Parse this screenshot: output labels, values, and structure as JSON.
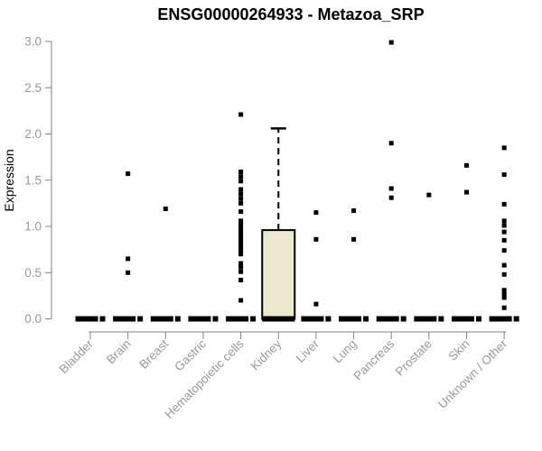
{
  "chart_data": {
    "type": "boxplot",
    "title": "ENSG00000264933 - Metazoa_SRP",
    "ylabel": "Expression",
    "xlabel": "",
    "ylim": [
      0.0,
      3.0
    ],
    "ytick_labels": [
      "0.0",
      "0.5",
      "1.0",
      "1.5",
      "2.0",
      "2.5",
      "3.0"
    ],
    "grid": false,
    "legend": "none",
    "categories": [
      "Bladder",
      "Brain",
      "Breast",
      "Gastric",
      "Hematopoietic cells",
      "Kidney",
      "Liver",
      "Lung",
      "Pancreas",
      "Prostate",
      "Skin",
      "Unknown / Other"
    ],
    "series": [
      {
        "category": "Bladder",
        "q1": 0,
        "median": 0,
        "q3": 0,
        "whisker_low": 0,
        "whisker_high": 0,
        "outliers": []
      },
      {
        "category": "Brain",
        "q1": 0,
        "median": 0,
        "q3": 0,
        "whisker_low": 0,
        "whisker_high": 0,
        "outliers": [
          1.57,
          0.65,
          0.5
        ]
      },
      {
        "category": "Breast",
        "q1": 0,
        "median": 0,
        "q3": 0,
        "whisker_low": 0,
        "whisker_high": 0,
        "outliers": [
          1.19
        ]
      },
      {
        "category": "Gastric",
        "q1": 0,
        "median": 0,
        "q3": 0,
        "whisker_low": 0,
        "whisker_high": 0,
        "outliers": []
      },
      {
        "category": "Hematopoietic cells",
        "q1": 0,
        "median": 0,
        "q3": 0,
        "whisker_low": 0,
        "whisker_high": 0,
        "outliers": [
          2.21,
          1.59,
          1.54,
          1.49,
          1.4,
          1.35,
          1.3,
          1.25,
          1.16,
          1.06,
          1.02,
          0.98,
          0.94,
          0.9,
          0.86,
          0.82,
          0.78,
          0.74,
          0.7,
          0.6,
          0.56,
          0.51,
          0.42,
          0.2
        ]
      },
      {
        "category": "Kidney",
        "q1": 0,
        "median": 0,
        "q3": 0.96,
        "whisker_low": 0,
        "whisker_high": 2.06,
        "outliers": []
      },
      {
        "category": "Liver",
        "q1": 0,
        "median": 0,
        "q3": 0,
        "whisker_low": 0,
        "whisker_high": 0,
        "outliers": [
          1.15,
          0.86,
          0.16
        ]
      },
      {
        "category": "Lung",
        "q1": 0,
        "median": 0,
        "q3": 0,
        "whisker_low": 0,
        "whisker_high": 0,
        "outliers": [
          1.17,
          0.86
        ]
      },
      {
        "category": "Pancreas",
        "q1": 0,
        "median": 0,
        "q3": 0,
        "whisker_low": 0,
        "whisker_high": 0,
        "outliers": [
          2.99,
          1.9,
          1.41,
          1.31
        ]
      },
      {
        "category": "Prostate",
        "q1": 0,
        "median": 0,
        "q3": 0,
        "whisker_low": 0,
        "whisker_high": 0,
        "outliers": [
          1.34
        ]
      },
      {
        "category": "Skin",
        "q1": 0,
        "median": 0,
        "q3": 0,
        "whisker_low": 0,
        "whisker_high": 0,
        "outliers": [
          1.66,
          1.37
        ]
      },
      {
        "category": "Unknown / Other",
        "q1": 0,
        "median": 0,
        "q3": 0,
        "whisker_low": 0,
        "whisker_high": 0,
        "outliers": [
          1.85,
          1.56,
          1.24,
          1.06,
          1.01,
          0.94,
          0.85,
          0.74,
          0.58,
          0.48,
          0.31,
          0.27,
          0.23,
          0.12
        ]
      }
    ],
    "colors": {
      "box_fill": "#ede8d0",
      "box_stroke": "#000000",
      "median": "#000000",
      "outlier": "#000000",
      "whisker": "#000000",
      "axis": "#808080",
      "tick_label": "#98999c",
      "title": "#000000"
    }
  }
}
